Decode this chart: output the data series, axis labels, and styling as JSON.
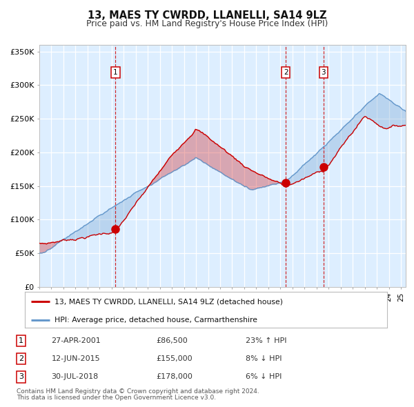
{
  "title": "13, MAES TY CWRDD, LLANELLI, SA14 9LZ",
  "subtitle": "Price paid vs. HM Land Registry's House Price Index (HPI)",
  "legend_line1": "13, MAES TY CWRDD, LLANELLI, SA14 9LZ (detached house)",
  "legend_line2": "HPI: Average price, detached house, Carmarthenshire",
  "footer1": "Contains HM Land Registry data © Crown copyright and database right 2024.",
  "footer2": "This data is licensed under the Open Government Licence v3.0.",
  "transactions": [
    {
      "num": 1,
      "date": "27-APR-2001",
      "price": 86500,
      "pct": "23%",
      "dir": "↑"
    },
    {
      "num": 2,
      "date": "12-JUN-2015",
      "price": 155000,
      "pct": "8%",
      "dir": "↓"
    },
    {
      "num": 3,
      "date": "30-JUL-2018",
      "price": 178000,
      "pct": "6%",
      "dir": "↓"
    }
  ],
  "transaction_dates_num": [
    2001.32,
    2015.45,
    2018.58
  ],
  "transaction_prices": [
    86500,
    155000,
    178000
  ],
  "red_color": "#cc0000",
  "blue_color": "#6699cc",
  "bg_color": "#ddeeff",
  "grid_color": "#ffffff",
  "vline_color": "#cc0000",
  "ylim": [
    0,
    360000
  ],
  "yticks": [
    0,
    50000,
    100000,
    150000,
    200000,
    250000,
    300000,
    350000
  ],
  "xlim_start": 1995.0,
  "xlim_end": 2025.4
}
